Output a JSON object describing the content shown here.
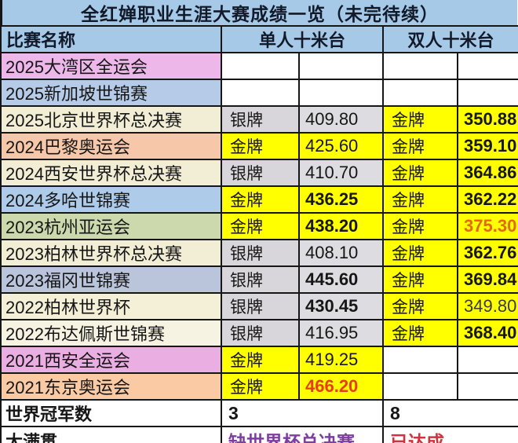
{
  "title": "全红婵职业生涯大赛成绩一览（未完待续）",
  "colors": {
    "header_blue": "#a6c9e8",
    "gold_cell": "#ffff00",
    "silver_medal_cell": "#d8d6da",
    "silver_score_cell": "#dddce0",
    "highlight_orange": "#e2690e",
    "highlight_red": "#ea3c14",
    "grand_slam_missing_purple": "#7e3da0",
    "grand_slam_done_red": "#cf3340"
  },
  "table": {
    "header": {
      "name": "比赛名称",
      "single": "单人十米台",
      "sync": "双人十米台"
    },
    "rows": [
      {
        "name": "2025大湾区全运会",
        "bg": "#edb7e9",
        "cells": [
          {},
          {},
          {},
          {}
        ]
      },
      {
        "name": "2025新加坡世锦赛",
        "bg": "#b5cbe8",
        "cells": [
          {},
          {},
          {},
          {}
        ]
      },
      {
        "name": "2025北京世界杯总决赛",
        "bg": "#f2eed6",
        "cells": [
          {
            "t": "银牌",
            "bg": "#d8d6da"
          },
          {
            "t": "409.80",
            "bg": "#dddce0"
          },
          {
            "t": "金牌",
            "bg": "#ffff00"
          },
          {
            "t": "350.88",
            "bg": "#ffff00",
            "b": true
          }
        ]
      },
      {
        "name": "2024巴黎奥运会",
        "bg": "#f6c8a9",
        "cells": [
          {
            "t": "金牌",
            "bg": "#ffff00"
          },
          {
            "t": "425.60",
            "bg": "#ffff00"
          },
          {
            "t": "金牌",
            "bg": "#ffff00"
          },
          {
            "t": "359.10",
            "bg": "#ffff00",
            "b": true
          }
        ]
      },
      {
        "name": "2024西安世界杯总决赛",
        "bg": "#f2eed6",
        "cells": [
          {
            "t": "银牌",
            "bg": "#d8d6da"
          },
          {
            "t": "410.70",
            "bg": "#dddce0"
          },
          {
            "t": "金牌",
            "bg": "#ffff00"
          },
          {
            "t": "364.86",
            "bg": "#ffff00",
            "b": true
          }
        ]
      },
      {
        "name": "2024多哈世锦赛",
        "bg": "#aecbea",
        "cells": [
          {
            "t": "金牌",
            "bg": "#ffff00"
          },
          {
            "t": "436.25",
            "bg": "#ffff00",
            "b": true
          },
          {
            "t": "金牌",
            "bg": "#ffff00"
          },
          {
            "t": "362.22",
            "bg": "#ffff00",
            "b": true
          }
        ]
      },
      {
        "name": "2023杭州亚运会",
        "bg": "#cbd9ad",
        "cells": [
          {
            "t": "金牌",
            "bg": "#ffff00"
          },
          {
            "t": "438.20",
            "bg": "#ffff00",
            "b": true
          },
          {
            "t": "金牌",
            "bg": "#ffff00"
          },
          {
            "t": "375.30",
            "bg": "#ffff00",
            "b": true,
            "c": "#e2690e"
          }
        ]
      },
      {
        "name": "2023柏林世界杯总决赛",
        "bg": "#f2eed6",
        "cells": [
          {
            "t": "银牌",
            "bg": "#d8d6da"
          },
          {
            "t": "408.10",
            "bg": "#dddce0"
          },
          {
            "t": "金牌",
            "bg": "#ffff00"
          },
          {
            "t": "362.76",
            "bg": "#ffff00",
            "b": true
          }
        ]
      },
      {
        "name": "2023福冈世锦赛",
        "bg": "#bac4db",
        "cells": [
          {
            "t": "银牌",
            "bg": "#d8d6da"
          },
          {
            "t": "445.60",
            "bg": "#dddce0",
            "b": true
          },
          {
            "t": "金牌",
            "bg": "#ffff00"
          },
          {
            "t": "369.84",
            "bg": "#ffff00",
            "b": true
          }
        ]
      },
      {
        "name": "2022柏林世界杯",
        "bg": "#f4f0d8",
        "cells": [
          {
            "t": "银牌",
            "bg": "#d8d6da"
          },
          {
            "t": "430.45",
            "bg": "#dddce0",
            "b": true
          },
          {
            "t": "金牌",
            "bg": "#ffff00"
          },
          {
            "t": "349.80",
            "bg": "#ffff00",
            "c": "#3a3a3a"
          }
        ]
      },
      {
        "name": "2022布达佩斯世锦赛",
        "bg": "#f7f3e3",
        "cells": [
          {
            "t": "银牌",
            "bg": "#d8d6da"
          },
          {
            "t": "416.95",
            "bg": "#dddce0"
          },
          {
            "t": "金牌",
            "bg": "#ffff00"
          },
          {
            "t": "368.40",
            "bg": "#ffff00",
            "b": true
          }
        ]
      },
      {
        "name": "2021西安全运会",
        "bg": "#eaaee3",
        "cells": [
          {
            "t": "金牌",
            "bg": "#ffff00"
          },
          {
            "t": "419.25",
            "bg": "#ffff00"
          },
          {},
          {}
        ]
      },
      {
        "name": "2021东京奥运会",
        "bg": "#f9caa4",
        "cells": [
          {
            "t": "金牌",
            "bg": "#ffff00"
          },
          {
            "t": "466.20",
            "bg": "#ffff00",
            "b": true,
            "c": "#ea3c14"
          },
          {},
          {}
        ]
      }
    ],
    "summary": [
      {
        "label": "世界冠军数",
        "single": "3",
        "sync": "8",
        "single_color": "#161616",
        "sync_color": "#161616"
      },
      {
        "label": "大满贯",
        "single": "缺世界杯总决赛",
        "sync": "已达成",
        "single_color": "#7e3da0",
        "sync_color": "#cf3340"
      }
    ]
  }
}
